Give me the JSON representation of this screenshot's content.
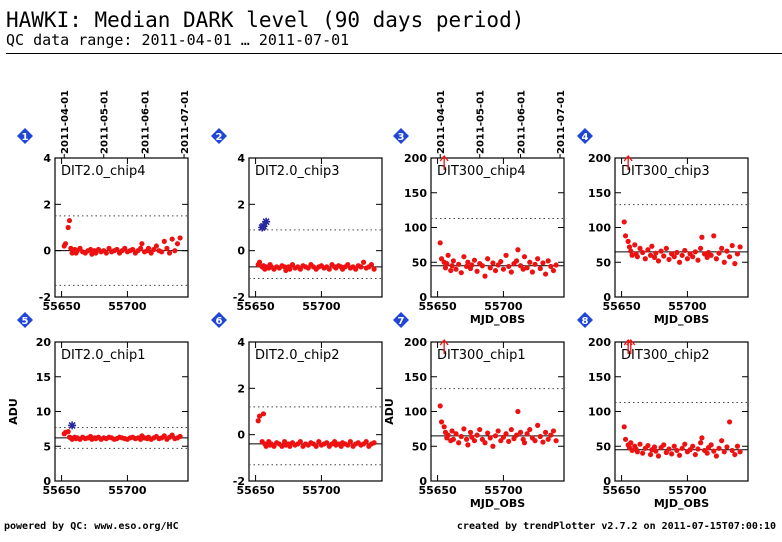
{
  "header": {
    "title": "HAWKI: Median DARK level (90 days period)",
    "subtitle": "QC data range: 2011-04-01 … 2011-07-01"
  },
  "footer": {
    "left": "powered by QC: www.eso.org/HC",
    "right": "created by trendPlotter v2.7.2 on 2011-07-15T07:00:10"
  },
  "colors": {
    "points": "#ee1111",
    "special": "#2a2aa0",
    "badge": "#1f46d6",
    "grid": "#444444"
  },
  "chart_data": [
    {
      "type": "scatter",
      "badge": "1",
      "panel_label": "DIT2.0_chip4",
      "xlim": [
        55645,
        55746
      ],
      "ylim": [
        -2,
        4
      ],
      "x_ticks": [
        55650,
        55700
      ],
      "y_ticks": [
        -2,
        0,
        2,
        4
      ],
      "ylabel": "",
      "xlabel": "",
      "date_ticks": [
        {
          "label": "2011-04-01",
          "mjd": 55652
        },
        {
          "label": "2011-05-01",
          "mjd": 55682
        },
        {
          "label": "2011-06-01",
          "mjd": 55713
        },
        {
          "label": "2011-07-01",
          "mjd": 55743
        }
      ],
      "ref_line": 0,
      "upper_line": 1.5,
      "lower_line": -1.5,
      "marker": "DIT2.0_chip4",
      "x": [
        55652,
        55653,
        55655,
        55656,
        55657,
        55658,
        55660,
        55661,
        55662,
        55664,
        55666,
        55668,
        55670,
        55672,
        55673,
        55675,
        55676,
        55678,
        55680,
        55682,
        55684,
        55686,
        55688,
        55690,
        55692,
        55694,
        55696,
        55698,
        55700,
        55702,
        55704,
        55706,
        55708,
        55710,
        55711,
        55713,
        55715,
        55716,
        55718,
        55720,
        55722,
        55724,
        55726,
        55728,
        55730,
        55732,
        55734,
        55736,
        55738,
        55740
      ],
      "y": [
        0.2,
        0.3,
        1.0,
        1.3,
        0.1,
        -0.1,
        0.05,
        -0.1,
        0.0,
        0.1,
        -0.05,
        -0.1,
        0.0,
        0.05,
        -0.15,
        0.0,
        -0.1,
        0.05,
        -0.05,
        0.0,
        -0.1,
        0.1,
        -0.05,
        0.0,
        0.05,
        -0.1,
        0.0,
        0.1,
        -0.05,
        0.0,
        0.05,
        -0.1,
        0.0,
        0.1,
        0.3,
        -0.05,
        0.0,
        0.1,
        -0.1,
        0.05,
        0.2,
        0.0,
        -0.05,
        0.4,
        0.1,
        -0.1,
        0.5,
        0.0,
        0.3,
        0.55
      ],
      "special": []
    },
    {
      "type": "scatter",
      "badge": "2",
      "panel_label": "DIT2.0_chip3",
      "xlim": [
        55645,
        55746
      ],
      "ylim": [
        -2,
        4
      ],
      "x_ticks": [
        55650,
        55700
      ],
      "y_ticks": [
        -2,
        0,
        2,
        4
      ],
      "ylabel": "",
      "xlabel": "",
      "date_ticks": [],
      "ref_line": -0.7,
      "upper_line": 0.9,
      "lower_line": -1.2,
      "marker": "DIT2.0_chip3",
      "x": [
        55652,
        55653,
        55655,
        55656,
        55657,
        55658,
        55660,
        55661,
        55662,
        55664,
        55666,
        55668,
        55670,
        55672,
        55673,
        55675,
        55676,
        55678,
        55680,
        55682,
        55684,
        55686,
        55688,
        55690,
        55692,
        55694,
        55696,
        55698,
        55700,
        55702,
        55704,
        55706,
        55708,
        55710,
        55711,
        55713,
        55715,
        55716,
        55718,
        55720,
        55722,
        55724,
        55726,
        55728,
        55730,
        55732,
        55734,
        55736,
        55738,
        55740
      ],
      "y": [
        -0.6,
        -0.5,
        -0.7,
        -0.65,
        -0.8,
        -0.7,
        -0.75,
        -0.6,
        -0.7,
        -0.8,
        -0.7,
        -0.75,
        -0.65,
        -0.7,
        -0.85,
        -0.7,
        -0.8,
        -0.6,
        -0.75,
        -0.7,
        -0.8,
        -0.65,
        -0.7,
        -0.75,
        -0.6,
        -0.7,
        -0.8,
        -0.7,
        -0.65,
        -0.75,
        -0.7,
        -0.8,
        -0.6,
        -0.7,
        -0.75,
        -0.65,
        -0.7,
        -0.8,
        -0.7,
        -0.6,
        -0.75,
        -0.7,
        -0.8,
        -0.65,
        -0.7,
        -0.5,
        -0.75,
        -0.7,
        -0.6,
        -0.8
      ],
      "special": [
        {
          "x": 55655,
          "y": 1.0
        },
        {
          "x": 55656,
          "y": 1.05
        },
        {
          "x": 55658,
          "y": 1.25
        }
      ]
    },
    {
      "type": "scatter",
      "badge": "3",
      "panel_label": "DIT300_chip4",
      "xlim": [
        55645,
        55746
      ],
      "ylim": [
        0,
        200
      ],
      "x_ticks": [
        55650,
        55700
      ],
      "y_ticks": [
        0,
        50,
        100,
        150,
        200
      ],
      "ylabel": "",
      "xlabel": "MJD_OBS",
      "date_ticks": [
        {
          "label": "2011-04-01",
          "mjd": 55652
        },
        {
          "label": "2011-05-01",
          "mjd": 55682
        },
        {
          "label": "2011-06-01",
          "mjd": 55713
        },
        {
          "label": "2011-07-01",
          "mjd": 55743
        }
      ],
      "ref_line": 45,
      "upper_line": 113,
      "lower_line": 0,
      "marker": "DIT300_chip4",
      "x": [
        55652,
        55653,
        55655,
        55656,
        55657,
        55658,
        55660,
        55661,
        55662,
        55664,
        55666,
        55668,
        55670,
        55672,
        55673,
        55675,
        55676,
        55678,
        55680,
        55682,
        55684,
        55686,
        55688,
        55690,
        55692,
        55694,
        55696,
        55698,
        55700,
        55702,
        55704,
        55706,
        55708,
        55710,
        55711,
        55713,
        55715,
        55716,
        55718,
        55720,
        55722,
        55724,
        55726,
        55728,
        55730,
        55732,
        55734,
        55736,
        55738,
        55740
      ],
      "y": [
        78,
        55,
        50,
        42,
        48,
        60,
        38,
        45,
        52,
        40,
        47,
        35,
        58,
        44,
        50,
        41,
        46,
        53,
        37,
        48,
        45,
        30,
        55,
        42,
        49,
        38,
        46,
        51,
        40,
        60,
        44,
        36,
        48,
        52,
        68,
        45,
        40,
        58,
        42,
        50,
        36,
        47,
        55,
        41,
        49,
        33,
        52,
        44,
        38,
        46
      ],
      "special": [],
      "arrows": [
        55655
      ]
    },
    {
      "type": "scatter",
      "badge": "4",
      "panel_label": "DIT300_chip3",
      "xlim": [
        55645,
        55746
      ],
      "ylim": [
        0,
        200
      ],
      "x_ticks": [
        55650,
        55700
      ],
      "y_ticks": [
        0,
        50,
        100,
        150,
        200
      ],
      "ylabel": "",
      "xlabel": "MJD_OBS",
      "date_ticks": [],
      "ref_line": 65,
      "upper_line": 133,
      "lower_line": 0,
      "marker": "DIT300_chip3",
      "x": [
        55652,
        55653,
        55655,
        55656,
        55657,
        55658,
        55660,
        55661,
        55662,
        55664,
        55666,
        55668,
        55670,
        55672,
        55673,
        55675,
        55676,
        55678,
        55680,
        55682,
        55684,
        55686,
        55688,
        55690,
        55692,
        55694,
        55696,
        55698,
        55700,
        55702,
        55704,
        55706,
        55708,
        55710,
        55711,
        55713,
        55715,
        55716,
        55718,
        55720,
        55722,
        55724,
        55726,
        55728,
        55730,
        55732,
        55734,
        55736,
        55738,
        55740
      ],
      "y": [
        108,
        88,
        80,
        72,
        66,
        60,
        75,
        62,
        58,
        70,
        64,
        55,
        68,
        60,
        73,
        57,
        63,
        52,
        66,
        59,
        70,
        54,
        62,
        58,
        64,
        50,
        60,
        67,
        55,
        62,
        58,
        65,
        53,
        70,
        86,
        62,
        57,
        64,
        60,
        88,
        55,
        63,
        70,
        50,
        66,
        58,
        74,
        48,
        62,
        72
      ],
      "special": [],
      "arrows": [
        55655
      ]
    },
    {
      "type": "scatter",
      "badge": "5",
      "panel_label": "DIT2.0_chip1",
      "xlim": [
        55645,
        55746
      ],
      "ylim": [
        0,
        20
      ],
      "x_ticks": [
        55650,
        55700
      ],
      "y_ticks": [
        0,
        5,
        10,
        15,
        20
      ],
      "ylabel": "ADU",
      "xlabel": "",
      "date_ticks": [],
      "ref_line": 6.2,
      "upper_line": 7.7,
      "lower_line": 4.7,
      "marker": "DIT2.0_chip1",
      "x": [
        55652,
        55653,
        55655,
        55656,
        55657,
        55658,
        55660,
        55661,
        55662,
        55664,
        55666,
        55668,
        55670,
        55672,
        55673,
        55675,
        55676,
        55678,
        55680,
        55682,
        55684,
        55686,
        55688,
        55690,
        55692,
        55694,
        55696,
        55698,
        55700,
        55702,
        55704,
        55706,
        55708,
        55710,
        55711,
        55713,
        55715,
        55716,
        55718,
        55720,
        55722,
        55724,
        55726,
        55728,
        55730,
        55732,
        55734,
        55736,
        55738,
        55740
      ],
      "y": [
        6.8,
        7.0,
        7.1,
        6.3,
        6.2,
        6.0,
        6.3,
        6.1,
        6.2,
        6.0,
        6.3,
        6.1,
        6.2,
        6.4,
        6.0,
        6.2,
        6.1,
        6.3,
        6.0,
        6.2,
        6.1,
        6.3,
        6.2,
        6.0,
        6.1,
        6.3,
        6.2,
        6.1,
        6.0,
        6.2,
        6.3,
        6.1,
        6.2,
        6.0,
        6.5,
        6.2,
        6.1,
        6.3,
        6.0,
        6.2,
        6.4,
        6.1,
        6.2,
        6.5,
        6.0,
        6.3,
        6.6,
        6.1,
        6.2,
        6.4
      ],
      "special": [
        {
          "x": 55658,
          "y": 8.0
        }
      ]
    },
    {
      "type": "scatter",
      "badge": "6",
      "panel_label": "DIT2.0_chip2",
      "xlim": [
        55645,
        55746
      ],
      "ylim": [
        -2,
        4
      ],
      "x_ticks": [
        55650,
        55700
      ],
      "y_ticks": [
        -2,
        0,
        2,
        4
      ],
      "ylabel": "",
      "xlabel": "",
      "date_ticks": [],
      "ref_line": -0.4,
      "upper_line": 1.2,
      "lower_line": -1.3,
      "marker": "DIT2.0_chip2",
      "x": [
        55652,
        55653,
        55655,
        55656,
        55657,
        55658,
        55660,
        55661,
        55662,
        55664,
        55666,
        55668,
        55670,
        55672,
        55673,
        55675,
        55676,
        55678,
        55680,
        55682,
        55684,
        55686,
        55688,
        55690,
        55692,
        55694,
        55696,
        55698,
        55700,
        55702,
        55704,
        55706,
        55708,
        55710,
        55711,
        55713,
        55715,
        55716,
        55718,
        55720,
        55722,
        55724,
        55726,
        55728,
        55730,
        55732,
        55734,
        55736,
        55738,
        55740
      ],
      "y": [
        0.6,
        0.8,
        -0.3,
        0.9,
        -0.4,
        -0.5,
        -0.3,
        -0.45,
        -0.4,
        -0.5,
        -0.35,
        -0.4,
        -0.5,
        -0.3,
        -0.45,
        -0.4,
        -0.5,
        -0.35,
        -0.45,
        -0.4,
        -0.3,
        -0.5,
        -0.4,
        -0.45,
        -0.35,
        -0.4,
        -0.5,
        -0.3,
        -0.45,
        -0.4,
        -0.35,
        -0.5,
        -0.4,
        -0.3,
        -0.45,
        -0.4,
        -0.5,
        -0.35,
        -0.4,
        -0.45,
        -0.3,
        -0.5,
        -0.4,
        -0.35,
        -0.45,
        -0.4,
        -0.3,
        -0.5,
        -0.4,
        -0.35
      ],
      "special": []
    },
    {
      "type": "scatter",
      "badge": "7",
      "panel_label": "DIT300_chip1",
      "xlim": [
        55645,
        55746
      ],
      "ylim": [
        0,
        200
      ],
      "x_ticks": [
        55650,
        55700
      ],
      "y_ticks": [
        0,
        50,
        100,
        150,
        200
      ],
      "ylabel": "ADU",
      "xlabel": "MJD_OBS",
      "date_ticks": [],
      "ref_line": 65,
      "upper_line": 133,
      "lower_line": 0,
      "marker": "DIT300_chip1",
      "x": [
        55652,
        55653,
        55655,
        55656,
        55657,
        55658,
        55660,
        55661,
        55662,
        55664,
        55666,
        55668,
        55670,
        55672,
        55673,
        55675,
        55676,
        55678,
        55680,
        55682,
        55684,
        55686,
        55688,
        55690,
        55692,
        55694,
        55696,
        55698,
        55700,
        55702,
        55704,
        55706,
        55708,
        55710,
        55711,
        55713,
        55715,
        55716,
        55718,
        55720,
        55722,
        55724,
        55726,
        55728,
        55730,
        55732,
        55734,
        55736,
        55738,
        55740
      ],
      "y": [
        108,
        85,
        78,
        70,
        62,
        66,
        58,
        72,
        60,
        68,
        55,
        64,
        75,
        60,
        52,
        70,
        63,
        58,
        66,
        74,
        60,
        55,
        69,
        62,
        50,
        65,
        72,
        58,
        63,
        68,
        57,
        74,
        61,
        66,
        100,
        70,
        60,
        55,
        68,
        74,
        62,
        58,
        80,
        64,
        56,
        70,
        60,
        66,
        72,
        58
      ],
      "special": [],
      "arrows": [
        55655
      ]
    },
    {
      "type": "scatter",
      "badge": "8",
      "panel_label": "DIT300_chip2",
      "xlim": [
        55645,
        55746
      ],
      "ylim": [
        0,
        200
      ],
      "x_ticks": [
        55650,
        55700
      ],
      "y_ticks": [
        0,
        50,
        100,
        150,
        200
      ],
      "ylabel": "",
      "xlabel": "MJD_OBS",
      "date_ticks": [],
      "ref_line": 45,
      "upper_line": 113,
      "lower_line": 0,
      "marker": "DIT300_chip2",
      "x": [
        55652,
        55653,
        55655,
        55656,
        55657,
        55658,
        55660,
        55661,
        55662,
        55664,
        55666,
        55668,
        55670,
        55672,
        55673,
        55675,
        55676,
        55678,
        55680,
        55682,
        55684,
        55686,
        55688,
        55690,
        55692,
        55694,
        55696,
        55698,
        55700,
        55702,
        55704,
        55706,
        55708,
        55710,
        55711,
        55713,
        55715,
        55716,
        55718,
        55720,
        55722,
        55724,
        55726,
        55728,
        55730,
        55732,
        55734,
        55736,
        55738,
        55740
      ],
      "y": [
        78,
        60,
        52,
        48,
        55,
        44,
        50,
        46,
        42,
        53,
        40,
        47,
        51,
        38,
        45,
        49,
        43,
        36,
        48,
        52,
        41,
        46,
        39,
        50,
        44,
        37,
        47,
        53,
        42,
        45,
        50,
        38,
        46,
        55,
        62,
        44,
        40,
        48,
        52,
        43,
        36,
        47,
        58,
        42,
        49,
        85,
        44,
        38,
        50,
        42
      ],
      "special": [],
      "arrows": [
        55655,
        55657
      ]
    }
  ]
}
